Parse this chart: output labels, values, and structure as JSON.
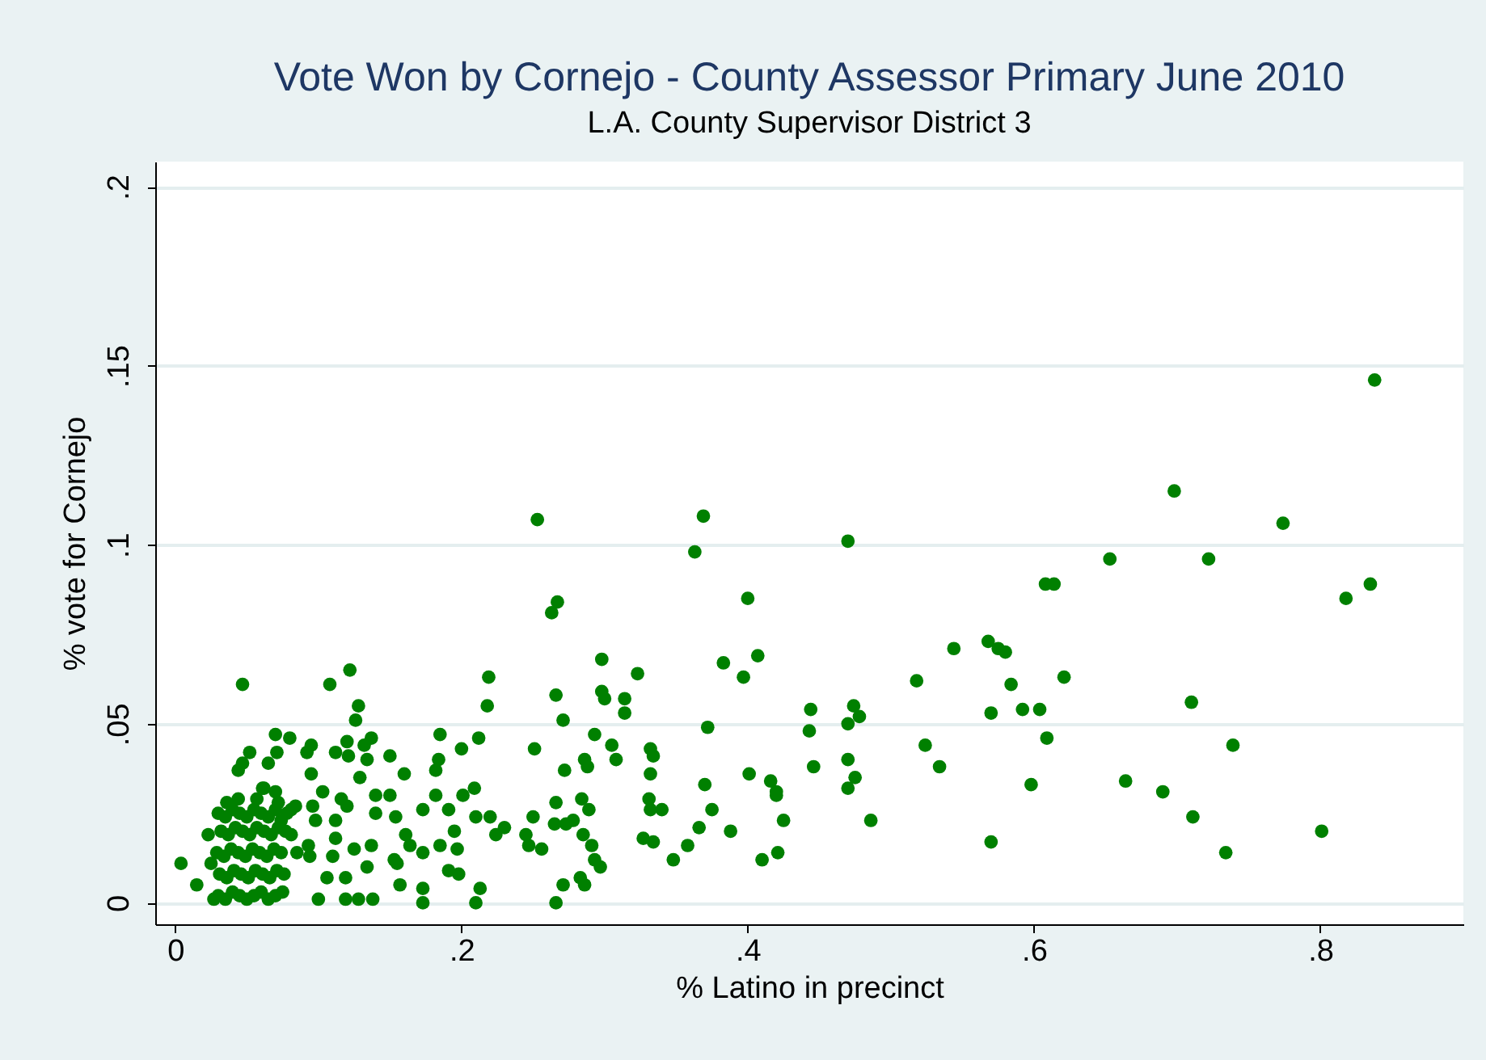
{
  "chart_data": {
    "type": "scatter",
    "title": "Vote Won by Cornejo - County Assessor Primary June 2010",
    "subtitle": "L.A. County Supervisor District 3",
    "xlabel": "% Latino in precinct",
    "ylabel": "% vote for Cornejo",
    "marker": "circle",
    "grid": "y",
    "xlim": [
      -0.014,
      0.9
    ],
    "ylim": [
      -0.006,
      0.207
    ],
    "xticks": [
      0,
      {
        "value": 0.2,
        "label": ".2"
      },
      {
        "value": 0.4,
        "label": ".4"
      },
      {
        "value": 0.6,
        "label": ".6"
      },
      {
        "value": 0.8,
        "label": ".8"
      }
    ],
    "yticks": [
      0,
      {
        "value": 0.05,
        "label": ".05"
      },
      {
        "value": 0.1,
        "label": ".1"
      },
      {
        "value": 0.15,
        "label": ".15"
      },
      {
        "value": 0.2,
        "label": ".2"
      }
    ],
    "series": [
      {
        "color": "#008000",
        "x": [
          0.838,
          0.698,
          0.774,
          0.47,
          0.653,
          0.722,
          0.608,
          0.614,
          0.818,
          0.835,
          0.544,
          0.568,
          0.575,
          0.58,
          0.518,
          0.584,
          0.621,
          0.444,
          0.474,
          0.47,
          0.478,
          0.57,
          0.592,
          0.604,
          0.71,
          0.443,
          0.524,
          0.609,
          0.739,
          0.446,
          0.47,
          0.534,
          0.475,
          0.47,
          0.598,
          0.664,
          0.69,
          0.486,
          0.711,
          0.425,
          0.57,
          0.801,
          0.734,
          0.421,
          0.42,
          0.253,
          0.369,
          0.363,
          0.4,
          0.267,
          0.263,
          0.298,
          0.323,
          0.383,
          0.407,
          0.397,
          0.219,
          0.218,
          0.266,
          0.298,
          0.3,
          0.314,
          0.314,
          0.271,
          0.372,
          0.185,
          0.212,
          0.2,
          0.251,
          0.293,
          0.305,
          0.308,
          0.286,
          0.288,
          0.272,
          0.332,
          0.334,
          0.332,
          0.401,
          0.416,
          0.42,
          0.37,
          0.375,
          0.366,
          0.388,
          0.41,
          0.348,
          0.358,
          0.331,
          0.332,
          0.34,
          0.327,
          0.334,
          0.266,
          0.25,
          0.265,
          0.273,
          0.278,
          0.284,
          0.289,
          0.285,
          0.291,
          0.293,
          0.297,
          0.283,
          0.286,
          0.271,
          0.266,
          0.245,
          0.256,
          0.247,
          0.21,
          0.22,
          0.23,
          0.224,
          0.201,
          0.209,
          0.182,
          0.182,
          0.184,
          0.173,
          0.191,
          0.195,
          0.197,
          0.185,
          0.173,
          0.191,
          0.198,
          0.213,
          0.21,
          0.173,
          0.173,
          0.16,
          0.15,
          0.161,
          0.164,
          0.157,
          0.155,
          0.15,
          0.154,
          0.122,
          0.047,
          0.108,
          0.128,
          0.126,
          0.07,
          0.08,
          0.095,
          0.092,
          0.12,
          0.112,
          0.121,
          0.137,
          0.132,
          0.134,
          0.129,
          0.052,
          0.047,
          0.044,
          0.071,
          0.065,
          0.095,
          0.103,
          0.062,
          0.07,
          0.116,
          0.12,
          0.14,
          0.084,
          0.096,
          0.098,
          0.112,
          0.14,
          0.112,
          0.11,
          0.125,
          0.137,
          0.134,
          0.119,
          0.106,
          0.1,
          0.119,
          0.128,
          0.138,
          0.094,
          0.093,
          0.004,
          0.015,
          0.081,
          0.085,
          0.074,
          0.153,
          0.023,
          0.025,
          0.027,
          0.036,
          0.044,
          0.057,
          0.061,
          0.072,
          0.081,
          0.03,
          0.035,
          0.04,
          0.045,
          0.05,
          0.055,
          0.06,
          0.065,
          0.07,
          0.075,
          0.031,
          0.036,
          0.041,
          0.046,
          0.051,
          0.056,
          0.061,
          0.066,
          0.071,
          0.076,
          0.029,
          0.034,
          0.039,
          0.044,
          0.049,
          0.054,
          0.059,
          0.064,
          0.069,
          0.074,
          0.032,
          0.037,
          0.042,
          0.047,
          0.052,
          0.057,
          0.062,
          0.067,
          0.072,
          0.077,
          0.03,
          0.035,
          0.04,
          0.045,
          0.05,
          0.055,
          0.06,
          0.065,
          0.07,
          0.078
        ],
        "values": [
          0.146,
          0.115,
          0.106,
          0.101,
          0.096,
          0.096,
          0.089,
          0.089,
          0.085,
          0.089,
          0.071,
          0.073,
          0.071,
          0.07,
          0.062,
          0.061,
          0.063,
          0.054,
          0.055,
          0.05,
          0.052,
          0.053,
          0.054,
          0.054,
          0.056,
          0.048,
          0.044,
          0.046,
          0.044,
          0.038,
          0.04,
          0.038,
          0.035,
          0.032,
          0.033,
          0.034,
          0.031,
          0.023,
          0.024,
          0.023,
          0.017,
          0.02,
          0.014,
          0.014,
          0.031,
          0.107,
          0.108,
          0.098,
          0.085,
          0.084,
          0.081,
          0.068,
          0.064,
          0.067,
          0.069,
          0.063,
          0.063,
          0.055,
          0.058,
          0.059,
          0.057,
          0.057,
          0.053,
          0.051,
          0.049,
          0.047,
          0.046,
          0.043,
          0.043,
          0.047,
          0.044,
          0.04,
          0.04,
          0.038,
          0.037,
          0.043,
          0.041,
          0.036,
          0.036,
          0.034,
          0.03,
          0.033,
          0.026,
          0.021,
          0.02,
          0.012,
          0.012,
          0.016,
          0.029,
          0.026,
          0.026,
          0.018,
          0.017,
          0.028,
          0.024,
          0.022,
          0.022,
          0.023,
          0.029,
          0.026,
          0.019,
          0.016,
          0.012,
          0.01,
          0.007,
          0.005,
          0.005,
          0.0,
          0.019,
          0.015,
          0.016,
          0.024,
          0.024,
          0.021,
          0.019,
          0.03,
          0.032,
          0.03,
          0.037,
          0.04,
          0.026,
          0.026,
          0.02,
          0.015,
          0.016,
          0.014,
          0.009,
          0.008,
          0.004,
          0.0,
          0.004,
          0.0,
          0.036,
          0.041,
          0.019,
          0.016,
          0.005,
          0.011,
          0.03,
          0.024,
          0.065,
          0.061,
          0.061,
          0.055,
          0.051,
          0.047,
          0.046,
          0.044,
          0.042,
          0.045,
          0.042,
          0.041,
          0.046,
          0.044,
          0.04,
          0.035,
          0.042,
          0.039,
          0.037,
          0.042,
          0.039,
          0.036,
          0.031,
          0.032,
          0.031,
          0.029,
          0.027,
          0.03,
          0.027,
          0.027,
          0.023,
          0.023,
          0.025,
          0.018,
          0.013,
          0.015,
          0.016,
          0.01,
          0.007,
          0.007,
          0.001,
          0.001,
          0.001,
          0.001,
          0.013,
          0.016,
          0.011,
          0.005,
          0.019,
          0.014,
          0.023,
          0.012,
          0.019,
          0.011,
          0.001,
          0.028,
          0.029,
          0.029,
          0.032,
          0.028,
          0.026,
          0.002,
          0.001,
          0.003,
          0.002,
          0.001,
          0.002,
          0.003,
          0.001,
          0.002,
          0.003,
          0.008,
          0.007,
          0.009,
          0.008,
          0.007,
          0.009,
          0.008,
          0.007,
          0.009,
          0.008,
          0.014,
          0.013,
          0.015,
          0.014,
          0.013,
          0.015,
          0.014,
          0.013,
          0.015,
          0.014,
          0.02,
          0.019,
          0.021,
          0.02,
          0.019,
          0.021,
          0.02,
          0.019,
          0.021,
          0.02,
          0.025,
          0.024,
          0.026,
          0.025,
          0.024,
          0.026,
          0.025,
          0.024,
          0.026,
          0.025
        ]
      }
    ]
  }
}
